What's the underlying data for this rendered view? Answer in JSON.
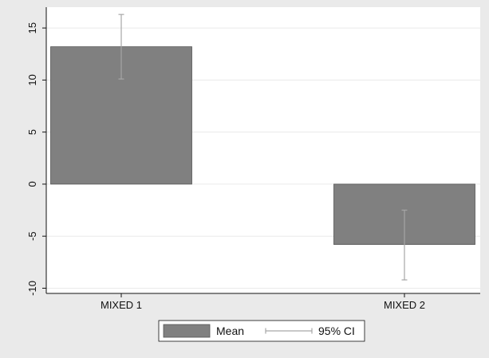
{
  "chart_data": {
    "type": "bar",
    "categories": [
      "MIXED 1",
      "MIXED 2"
    ],
    "series": [
      {
        "name": "Mean",
        "values": [
          13.2,
          -5.8
        ],
        "ci_lower": [
          10.1,
          -9.2
        ],
        "ci_upper": [
          16.3,
          -2.5
        ]
      }
    ],
    "ylim": [
      -10.5,
      17
    ],
    "yticks": [
      -10,
      -5,
      0,
      5,
      10,
      15
    ],
    "ytick_labels": [
      "-10",
      "-5",
      "0",
      "5",
      "10",
      "15"
    ],
    "grid": true,
    "legend": {
      "placement": "bottom",
      "entries": [
        {
          "label": "Mean",
          "kind": "bar"
        },
        {
          "label": "95% CI",
          "kind": "errorbar"
        }
      ]
    },
    "colors": {
      "background": "#eaeaea",
      "plot_area": "#ffffff",
      "bar_fill": "#808080",
      "bar_stroke": "#555555",
      "errorbar": "#a6a6a6",
      "grid": "#eaeaea",
      "axis": "#111111"
    }
  }
}
